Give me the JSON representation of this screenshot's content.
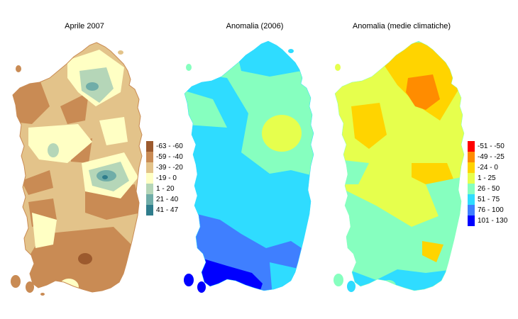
{
  "panels": [
    {
      "title": "Aprile 2007",
      "legend": [
        {
          "label": "-63 - -60",
          "color": "#9c5a2e"
        },
        {
          "label": "-59 - -40",
          "color": "#c98b54"
        },
        {
          "label": "-39 - -20",
          "color": "#e3c38a"
        },
        {
          "label": "-19 - 0",
          "color": "#ffffc4"
        },
        {
          "label": "1 - 20",
          "color": "#b5d6b8"
        },
        {
          "label": "21 - 40",
          "color": "#70ada8"
        },
        {
          "label": "41 - 47",
          "color": "#2f7d8c"
        }
      ]
    },
    {
      "title": "Anomalia (2006)"
    },
    {
      "title": "Anomalia (medie climatiche)",
      "legend": [
        {
          "label": "-51 - -50",
          "color": "#ff0000"
        },
        {
          "label": "-49 - -25",
          "color": "#ff8c00"
        },
        {
          "label": "-24 - 0",
          "color": "#ffd400"
        },
        {
          "label": "1 - 25",
          "color": "#e6ff4d"
        },
        {
          "label": "26 - 50",
          "color": "#86ffbf"
        },
        {
          "label": "51 - 75",
          "color": "#2fdcff"
        },
        {
          "label": "76 - 100",
          "color": "#3f7fff"
        },
        {
          "label": "101 - 130",
          "color": "#0000ff"
        }
      ]
    }
  ]
}
